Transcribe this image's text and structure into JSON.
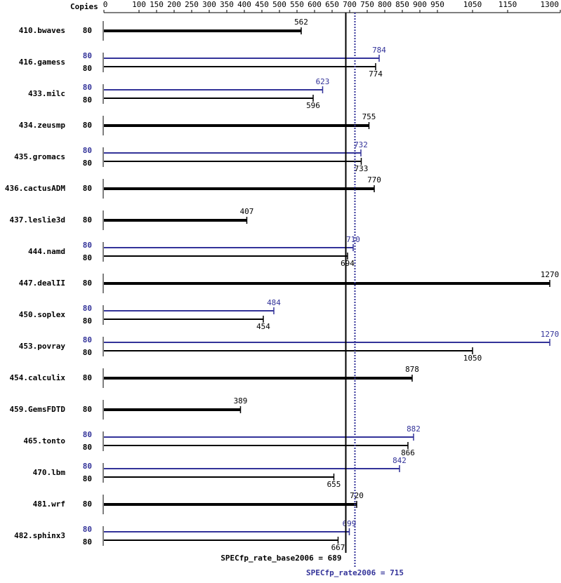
{
  "chart_data": {
    "type": "bar",
    "orientation": "horizontal",
    "copies_label": "Copies",
    "categories": [
      "410.bwaves",
      "416.gamess",
      "433.milc",
      "434.zeusmp",
      "435.gromacs",
      "436.cactusADM",
      "437.leslie3d",
      "444.namd",
      "447.dealII",
      "450.soplex",
      "453.povray",
      "454.calculix",
      "459.GemsFDTD",
      "465.tonto",
      "470.lbm",
      "481.wrf",
      "482.sphinx3"
    ],
    "series": [
      {
        "color": "#333399",
        "copies": [
          null,
          80,
          80,
          null,
          80,
          null,
          null,
          80,
          null,
          80,
          80,
          null,
          null,
          80,
          80,
          null,
          80
        ],
        "values": [
          null,
          784,
          623,
          null,
          732,
          null,
          null,
          710,
          null,
          484,
          1270,
          null,
          null,
          882,
          842,
          null,
          699
        ]
      },
      {
        "color": "#000000",
        "copies": [
          80,
          80,
          80,
          80,
          80,
          80,
          80,
          80,
          80,
          80,
          80,
          80,
          80,
          80,
          80,
          80,
          80
        ],
        "values": [
          562,
          774,
          596,
          755,
          733,
          770,
          407,
          694,
          1270,
          454,
          1050,
          878,
          389,
          866,
          655,
          720,
          667
        ]
      }
    ],
    "xlim": [
      0,
      1300
    ],
    "xticks": [
      0,
      100,
      150,
      200,
      250,
      300,
      350,
      400,
      450,
      500,
      550,
      600,
      650,
      700,
      750,
      800,
      850,
      900,
      950,
      1050,
      1150,
      1300
    ],
    "base_mean": 689,
    "base_mean_label": "SPECfp_rate_base2006 = 689",
    "peak_mean": 715,
    "peak_mean_label": "SPECfp_rate2006 = 715"
  }
}
